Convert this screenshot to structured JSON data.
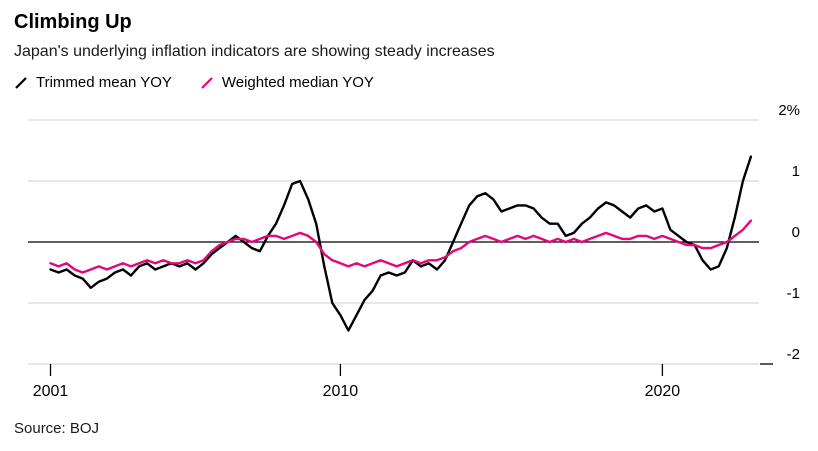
{
  "chart_data": {
    "type": "line",
    "title": "Climbing Up",
    "subtitle": "Japan's underlying inflation indicators are showing steady increases",
    "source": "Source: BOJ",
    "unit": "%",
    "grid": true,
    "legend_position": "top-left",
    "xlim": [
      2000.3,
      2023.0
    ],
    "ylim": [
      -2,
      2
    ],
    "yticks": [
      {
        "value": 2,
        "label": "2%"
      },
      {
        "value": 1,
        "label": "1"
      },
      {
        "value": 0,
        "label": "0"
      },
      {
        "value": -1,
        "label": "-1"
      },
      {
        "value": -2,
        "label": "-2"
      }
    ],
    "xticks": [
      {
        "value": 2001,
        "label": "2001"
      },
      {
        "value": 2010,
        "label": "2010"
      },
      {
        "value": 2020,
        "label": "2020"
      }
    ],
    "x": [
      2001.0,
      2001.25,
      2001.5,
      2001.75,
      2002.0,
      2002.25,
      2002.5,
      2002.75,
      2003.0,
      2003.25,
      2003.5,
      2003.75,
      2004.0,
      2004.25,
      2004.5,
      2004.75,
      2005.0,
      2005.25,
      2005.5,
      2005.75,
      2006.0,
      2006.25,
      2006.5,
      2006.75,
      2007.0,
      2007.25,
      2007.5,
      2007.75,
      2008.0,
      2008.25,
      2008.5,
      2008.75,
      2009.0,
      2009.25,
      2009.5,
      2009.75,
      2010.0,
      2010.25,
      2010.5,
      2010.75,
      2011.0,
      2011.25,
      2011.5,
      2011.75,
      2012.0,
      2012.25,
      2012.5,
      2012.75,
      2013.0,
      2013.25,
      2013.5,
      2013.75,
      2014.0,
      2014.25,
      2014.5,
      2014.75,
      2015.0,
      2015.25,
      2015.5,
      2015.75,
      2016.0,
      2016.25,
      2016.5,
      2016.75,
      2017.0,
      2017.25,
      2017.5,
      2017.75,
      2018.0,
      2018.25,
      2018.5,
      2018.75,
      2019.0,
      2019.25,
      2019.5,
      2019.75,
      2020.0,
      2020.25,
      2020.5,
      2020.75,
      2021.0,
      2021.25,
      2021.5,
      2021.75,
      2022.0,
      2022.25,
      2022.5,
      2022.75
    ],
    "series": [
      {
        "name": "Trimmed mean YOY",
        "color": "#000000",
        "values": [
          -0.45,
          -0.5,
          -0.45,
          -0.55,
          -0.6,
          -0.75,
          -0.65,
          -0.6,
          -0.5,
          -0.45,
          -0.55,
          -0.4,
          -0.35,
          -0.45,
          -0.4,
          -0.35,
          -0.4,
          -0.35,
          -0.45,
          -0.35,
          -0.2,
          -0.1,
          0.0,
          0.1,
          0.0,
          -0.1,
          -0.15,
          0.1,
          0.3,
          0.6,
          0.95,
          1.0,
          0.7,
          0.3,
          -0.4,
          -1.0,
          -1.2,
          -1.45,
          -1.2,
          -0.95,
          -0.8,
          -0.55,
          -0.5,
          -0.55,
          -0.5,
          -0.3,
          -0.4,
          -0.35,
          -0.45,
          -0.3,
          0.0,
          0.3,
          0.6,
          0.75,
          0.8,
          0.7,
          0.5,
          0.55,
          0.6,
          0.6,
          0.55,
          0.4,
          0.3,
          0.3,
          0.1,
          0.15,
          0.3,
          0.4,
          0.55,
          0.65,
          0.6,
          0.5,
          0.4,
          0.55,
          0.6,
          0.5,
          0.55,
          0.2,
          0.1,
          0.0,
          -0.05,
          -0.3,
          -0.45,
          -0.4,
          -0.1,
          0.4,
          1.0,
          1.4
        ]
      },
      {
        "name": "Weighted median YOY",
        "color": "#e4067e",
        "values": [
          -0.35,
          -0.4,
          -0.35,
          -0.45,
          -0.5,
          -0.45,
          -0.4,
          -0.45,
          -0.4,
          -0.35,
          -0.4,
          -0.35,
          -0.3,
          -0.35,
          -0.3,
          -0.35,
          -0.35,
          -0.3,
          -0.35,
          -0.3,
          -0.15,
          -0.05,
          0.0,
          0.05,
          0.05,
          0.0,
          0.05,
          0.1,
          0.1,
          0.05,
          0.1,
          0.15,
          0.1,
          0.0,
          -0.2,
          -0.3,
          -0.35,
          -0.4,
          -0.35,
          -0.4,
          -0.35,
          -0.3,
          -0.35,
          -0.4,
          -0.35,
          -0.3,
          -0.35,
          -0.3,
          -0.3,
          -0.25,
          -0.15,
          -0.1,
          0.0,
          0.05,
          0.1,
          0.05,
          0.0,
          0.05,
          0.1,
          0.05,
          0.1,
          0.05,
          0.0,
          0.05,
          0.0,
          0.05,
          0.0,
          0.05,
          0.1,
          0.15,
          0.1,
          0.05,
          0.05,
          0.1,
          0.1,
          0.05,
          0.1,
          0.05,
          0.0,
          -0.05,
          -0.05,
          -0.1,
          -0.1,
          -0.05,
          0.0,
          0.1,
          0.2,
          0.35
        ]
      }
    ],
    "colors": {
      "gridline": "#cfcfcf",
      "zero_line": "#000000",
      "axis_text": "#000000"
    }
  }
}
